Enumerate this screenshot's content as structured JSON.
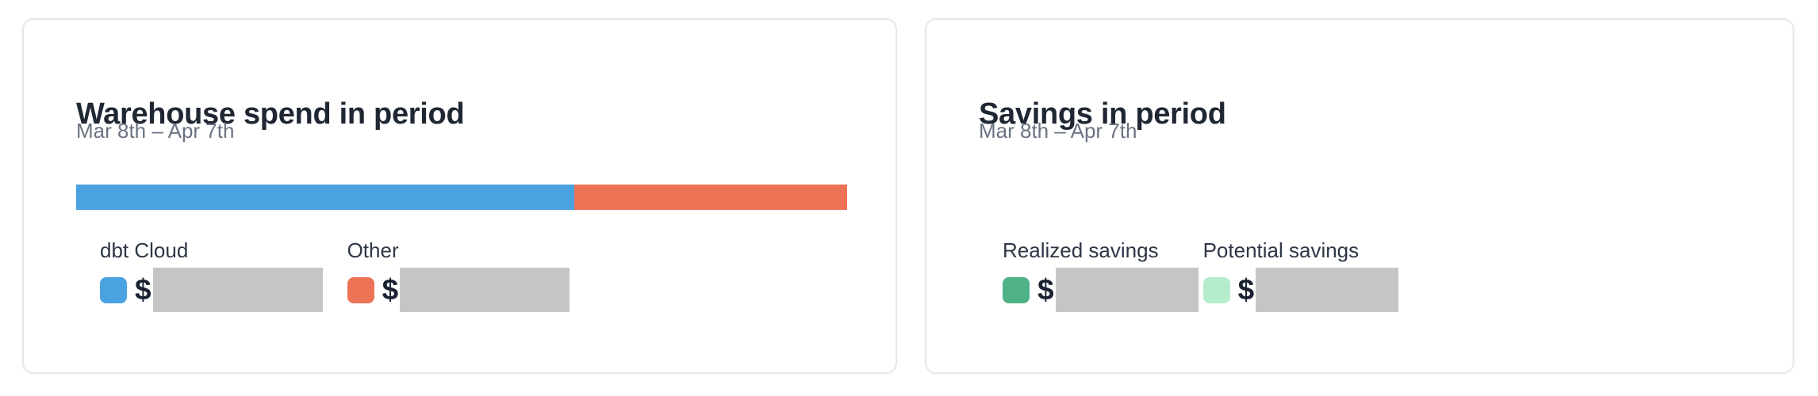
{
  "page": {
    "background": "#ffffff",
    "card_border": "#E6E7EC"
  },
  "cards": {
    "warehouse": {
      "title": "Warehouse spend in period",
      "period": "Mar 8th – Apr 7th",
      "legend": [
        {
          "label": "dbt Cloud",
          "swatch_color": "#4AA2E0",
          "currency": "$",
          "value_redacted": true
        },
        {
          "label": "Other",
          "swatch_color": "#EC7356",
          "currency": "$",
          "value_redacted": true
        }
      ]
    },
    "savings": {
      "title": "Savings in period",
      "period": "Mar 8th – Apr 7th",
      "legend": [
        {
          "label": "Realized savings",
          "swatch_color": "#4FB286",
          "currency": "$",
          "value_redacted": true
        },
        {
          "label": "Potential savings",
          "swatch_color": "#B5EDCC",
          "currency": "$",
          "value_redacted": true
        }
      ]
    }
  },
  "chart_data": [
    {
      "type": "bar",
      "title": "Warehouse spend in period",
      "subtitle": "Mar 8th – Apr 7th",
      "orientation": "horizontal-stacked",
      "series": [
        {
          "name": "dbt Cloud",
          "share_pct": 64.6,
          "color": "#4AA2E0",
          "value": null
        },
        {
          "name": "Other",
          "share_pct": 35.4,
          "color": "#EC7356",
          "value": null
        }
      ],
      "legend_position": "below",
      "note": "dollar values hidden by gray redaction boxes"
    },
    {
      "type": "table",
      "title": "Savings in period",
      "subtitle": "Mar 8th – Apr 7th",
      "categories": [
        "Realized savings",
        "Potential savings"
      ],
      "values": [
        null,
        null
      ],
      "colors": [
        "#4FB286",
        "#B5EDCC"
      ],
      "note": "dollar values hidden by gray redaction boxes"
    }
  ]
}
